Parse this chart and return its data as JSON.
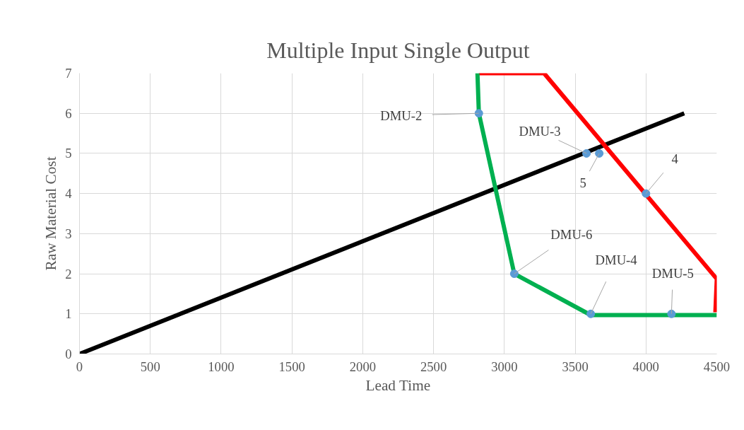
{
  "chart_data": {
    "type": "line",
    "title": "Multiple Input Single Output",
    "xlabel": "Lead Time",
    "ylabel": "Raw Material Cost",
    "xlim": [
      0,
      4500
    ],
    "ylim": [
      0,
      7
    ],
    "xticks": [
      0,
      500,
      1000,
      1500,
      2000,
      2500,
      3000,
      3500,
      4000,
      4500
    ],
    "yticks": [
      0,
      1,
      2,
      3,
      4,
      5,
      6,
      7
    ],
    "grid": true,
    "marker": "none",
    "series": [
      {
        "color": "#000000",
        "x": [
          0,
          4270
        ],
        "values": [
          0,
          6
        ]
      },
      {
        "color": "#ff0000",
        "x": [
          2820,
          3280,
          4500,
          4490
        ],
        "values": [
          7,
          7,
          1.87,
          1.04
        ]
      },
      {
        "color": "#00b050",
        "x": [
          2810,
          2820,
          3070,
          3610,
          4500
        ],
        "values": [
          7,
          6,
          2,
          0.97,
          0.97
        ]
      },
      {
        "type": "scatter",
        "marker": "circle",
        "color": "#5b9bd5",
        "x": [
          2820,
          3580,
          3670,
          4000,
          3070,
          3610,
          4180
        ],
        "values": [
          6,
          5,
          5,
          4,
          2,
          1,
          1
        ]
      }
    ],
    "annotations": [
      {
        "text": "DMU-2",
        "x": 2820,
        "y": 6
      },
      {
        "text": "DMU-3",
        "x": 3580,
        "y": 5
      },
      {
        "text": "5",
        "x": 3670,
        "y": 5
      },
      {
        "text": "4",
        "x": 4000,
        "y": 4
      },
      {
        "text": "DMU-6",
        "x": 3070,
        "y": 2
      },
      {
        "text": "DMU-4",
        "x": 3610,
        "y": 1
      },
      {
        "text": "DMU-5",
        "x": 4180,
        "y": 1
      }
    ]
  }
}
